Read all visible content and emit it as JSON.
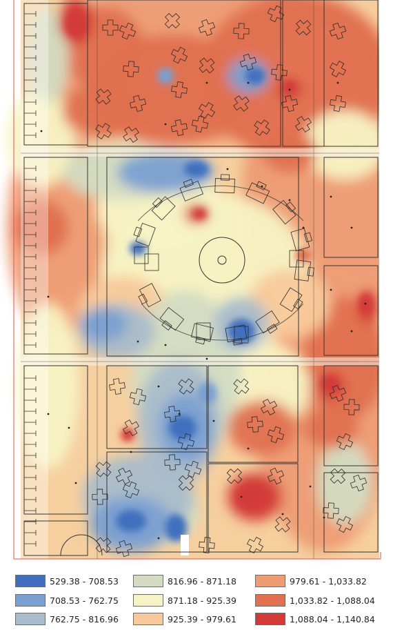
{
  "map": {
    "class_colors": {
      "c1": "#3f6fbe",
      "c2": "#7a9fd1",
      "c3": "#a9bccb",
      "c4": "#d3dcc2",
      "c5": "#f8f3c4",
      "c6": "#f8c99a",
      "c7": "#ee9c74",
      "c8": "#e0704f",
      "c9": "#d33a37"
    }
  },
  "legend": {
    "items": [
      {
        "label": "529.38 - 708.53",
        "color": "#3f6fbe"
      },
      {
        "label": "708.53 - 762.75",
        "color": "#7a9fd1"
      },
      {
        "label": "762.75 - 816.96",
        "color": "#a9bccb"
      },
      {
        "label": "816.96 - 871.18",
        "color": "#d3dcc2"
      },
      {
        "label": "871.18 - 925.39",
        "color": "#f8f3c4"
      },
      {
        "label": "925.39 - 979.61",
        "color": "#f8c99a"
      },
      {
        "label": "979.61 - 1,033.82",
        "color": "#ee9c74"
      },
      {
        "label": "1,033.82 - 1,088.04",
        "color": "#e0704f"
      },
      {
        "label": "1,088.04 - 1,140.84",
        "color": "#d33a37"
      }
    ]
  }
}
